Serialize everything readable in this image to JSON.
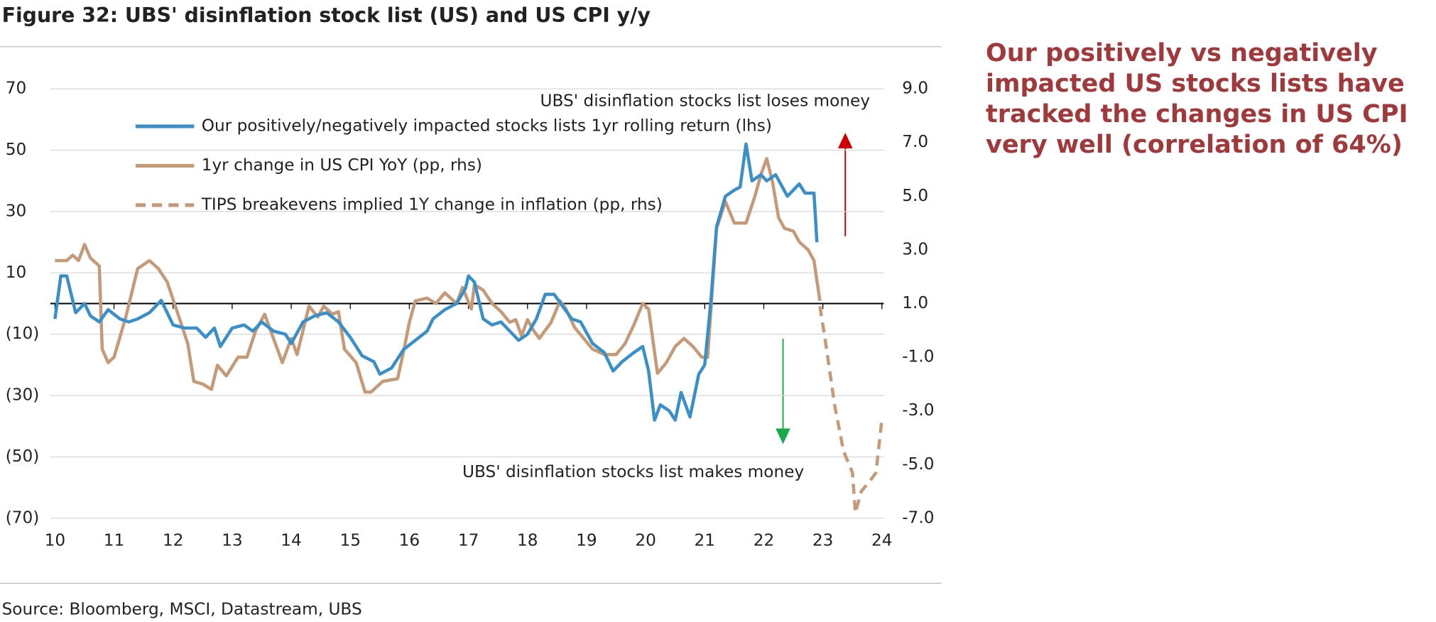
{
  "chart_data": {
    "type": "line",
    "title": "Figure 32: UBS' disinflation stock list (US) and US CPI y/y",
    "source": "Source: Bloomberg, MSCI, Datastream, UBS",
    "side_note": "Our positively vs negatively impacted US stocks lists have tracked the changes in US CPI very well (correlation of 64%)",
    "annotations": [
      {
        "text": "UBS' disinflation stocks list loses money",
        "color": "#e00000"
      },
      {
        "text": "UBS' disinflation stocks list makes money",
        "color": "#1aa84a"
      }
    ],
    "xlim": [
      10,
      24
    ],
    "xticks": [
      10,
      11,
      12,
      13,
      14,
      15,
      16,
      17,
      18,
      19,
      20,
      21,
      22,
      23,
      24
    ],
    "ylim": [
      -70,
      70
    ],
    "yticks": [
      70,
      50,
      30,
      10,
      {
        "value": -10,
        "label": "(10)"
      },
      {
        "value": -30,
        "label": "(30)"
      },
      {
        "value": -50,
        "label": "(50)"
      },
      {
        "value": -70,
        "label": "(70)"
      }
    ],
    "y2lim": [
      -7,
      9
    ],
    "y2ticks": [
      {
        "value": 9,
        "label": "9.0"
      },
      {
        "value": 7,
        "label": "7.0"
      },
      {
        "value": 5,
        "label": "5.0"
      },
      {
        "value": 3,
        "label": "3.0"
      },
      {
        "value": 1,
        "label": "1.0"
      },
      {
        "value": -1,
        "label": "-1.0"
      },
      {
        "value": -3,
        "label": "-3.0"
      },
      {
        "value": -5,
        "label": "-5.0"
      },
      {
        "value": -7,
        "label": "-7.0"
      }
    ],
    "negative_tick_color": "#e00000",
    "grid": true,
    "series": [
      {
        "name": "Our positively/negatively impacted stocks lists 1yr rolling return (lhs)",
        "color": "#3a8fc9",
        "style": "solid",
        "x": [
          10.0,
          10.1,
          10.2,
          10.35,
          10.5,
          10.6,
          10.75,
          10.9,
          11.1,
          11.25,
          11.4,
          11.6,
          11.8,
          12.0,
          12.2,
          12.4,
          12.55,
          12.7,
          12.8,
          13.0,
          13.2,
          13.35,
          13.5,
          13.7,
          13.9,
          14.0,
          14.2,
          14.4,
          14.6,
          14.8,
          15.0,
          15.2,
          15.4,
          15.5,
          15.7,
          15.9,
          16.1,
          16.3,
          16.4,
          16.6,
          16.8,
          16.95,
          17.0,
          17.1,
          17.25,
          17.4,
          17.55,
          17.7,
          17.85,
          18.0,
          18.15,
          18.3,
          18.45,
          18.6,
          18.75,
          18.9,
          19.1,
          19.3,
          19.45,
          19.6,
          19.8,
          19.95,
          20.05,
          20.15,
          20.25,
          20.4,
          20.5,
          20.6,
          20.75,
          20.9,
          21.0,
          21.1,
          21.2,
          21.35,
          21.5,
          21.6,
          21.7,
          21.8,
          21.95,
          22.05,
          22.2,
          22.4,
          22.6,
          22.7,
          22.85,
          22.9
        ],
        "values": [
          -5,
          9,
          9,
          -3,
          0,
          -4,
          -6,
          -2,
          -5,
          -6,
          -5,
          -3,
          1,
          -7,
          -8,
          -8,
          -11,
          -8,
          -14,
          -8,
          -7,
          -9,
          -6,
          -9,
          -10,
          -13,
          -6,
          -4,
          -3,
          -6,
          -11,
          -17,
          -19,
          -23,
          -21,
          -15,
          -12,
          -9,
          -5,
          -2,
          0,
          5,
          9,
          7,
          -5,
          -7,
          -6,
          -9,
          -12,
          -10,
          -5,
          3,
          3,
          -1,
          -5,
          -6,
          -13,
          -16,
          -22,
          -19,
          -16,
          -14,
          -22,
          -38,
          -33,
          -35,
          -38,
          -29,
          -37,
          -23,
          -20,
          0,
          25,
          35,
          37,
          38,
          52,
          40,
          42,
          40,
          42,
          35,
          39,
          36,
          36,
          20
        ]
      },
      {
        "name": "1yr change in US CPI YoY (pp, rhs)",
        "color": "#c49a78",
        "style": "solid",
        "axis": "y2",
        "x": [
          10.0,
          10.2,
          10.3,
          10.4,
          10.5,
          10.6,
          10.75,
          10.8,
          10.9,
          11.0,
          11.2,
          11.4,
          11.6,
          11.75,
          11.9,
          12.1,
          12.25,
          12.35,
          12.5,
          12.65,
          12.75,
          12.9,
          13.1,
          13.25,
          13.4,
          13.55,
          13.7,
          13.85,
          14.0,
          14.1,
          14.3,
          14.45,
          14.55,
          14.7,
          14.8,
          14.9,
          15.1,
          15.25,
          15.35,
          15.55,
          15.8,
          15.9,
          16.0,
          16.1,
          16.3,
          16.45,
          16.6,
          16.8,
          16.9,
          17.05,
          17.1,
          17.25,
          17.4,
          17.55,
          17.7,
          17.8,
          17.9,
          18.0,
          18.1,
          18.2,
          18.4,
          18.55,
          18.65,
          18.8,
          18.95,
          19.1,
          19.3,
          19.5,
          19.65,
          19.8,
          19.95,
          20.05,
          20.2,
          20.35,
          20.5,
          20.65,
          20.8,
          20.95,
          21.05,
          21.2,
          21.35,
          21.5,
          21.7,
          21.85,
          21.95,
          22.05,
          22.15,
          22.25,
          22.35,
          22.5,
          22.6,
          22.75,
          22.85,
          22.95
        ],
        "values": [
          2.6,
          2.6,
          2.8,
          2.6,
          3.2,
          2.7,
          2.4,
          -0.7,
          -1.2,
          -1.0,
          0.5,
          2.3,
          2.6,
          2.3,
          1.8,
          0.5,
          -0.5,
          -1.9,
          -2.0,
          -2.2,
          -1.3,
          -1.7,
          -1.0,
          -1.0,
          0.0,
          0.6,
          -0.3,
          -1.2,
          -0.3,
          -0.9,
          0.9,
          0.5,
          0.9,
          0.6,
          0.7,
          -0.7,
          -1.2,
          -2.3,
          -2.3,
          -1.9,
          -1.8,
          -0.8,
          0.3,
          1.1,
          1.2,
          1.0,
          1.4,
          1.0,
          1.6,
          0.8,
          1.7,
          1.5,
          1.0,
          0.7,
          0.3,
          0.4,
          -0.2,
          0.4,
          0.0,
          -0.3,
          0.3,
          1.1,
          0.8,
          0.1,
          -0.3,
          -0.7,
          -0.9,
          -0.9,
          -0.5,
          0.2,
          1.0,
          0.8,
          -1.6,
          -1.2,
          -0.6,
          -0.3,
          -0.6,
          -1.0,
          -1.0,
          3.8,
          4.8,
          4.0,
          4.0,
          5.0,
          5.8,
          6.4,
          5.5,
          4.2,
          3.8,
          3.7,
          3.3,
          3.0,
          2.6,
          1.1
        ]
      },
      {
        "name": "TIPS breakevens implied 1Y change in inflation (pp, rhs)",
        "color": "#c49a78",
        "style": "dashed",
        "axis": "y2",
        "x": [
          22.95,
          23.05,
          23.2,
          23.35,
          23.5,
          23.55,
          23.65,
          23.8,
          23.9,
          24.0
        ],
        "values": [
          0.9,
          -0.5,
          -2.8,
          -4.5,
          -5.3,
          -6.8,
          -6.0,
          -5.6,
          -5.3,
          -3.3
        ]
      }
    ]
  }
}
